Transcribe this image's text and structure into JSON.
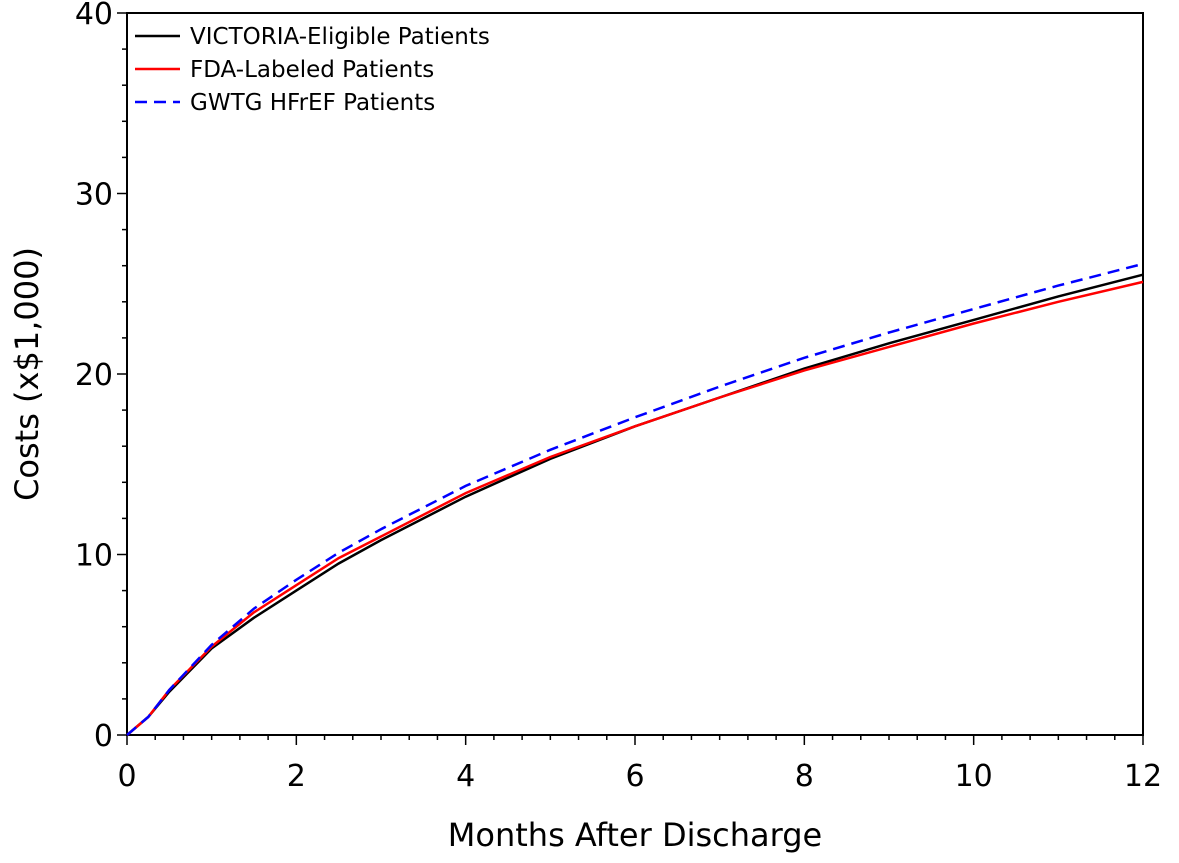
{
  "chart_data": {
    "type": "line",
    "title": "",
    "xlabel": "Months After Discharge",
    "ylabel": "Costs (x$1,000)",
    "xlim": [
      0,
      12
    ],
    "ylim": [
      0,
      40
    ],
    "x_ticks": [
      0,
      2,
      4,
      6,
      8,
      10,
      12
    ],
    "y_ticks": [
      0,
      10,
      20,
      30,
      40
    ],
    "grid": false,
    "legend_position": "top-left",
    "x": [
      0,
      0.25,
      0.5,
      1,
      1.5,
      2,
      2.5,
      3,
      4,
      5,
      6,
      7,
      8,
      9,
      10,
      11,
      12
    ],
    "series": [
      {
        "name": "VICTORIA-Eligible Patients",
        "color": "#000000",
        "dash": "solid",
        "values": [
          0,
          1.0,
          2.4,
          4.8,
          6.5,
          8.0,
          9.5,
          10.8,
          13.2,
          15.3,
          17.1,
          18.7,
          20.3,
          21.7,
          23.0,
          24.3,
          25.5
        ]
      },
      {
        "name": "FDA-Labeled Patients",
        "color": "#ff0000",
        "dash": "solid",
        "values": [
          0,
          1.0,
          2.5,
          4.9,
          6.8,
          8.3,
          9.8,
          11.0,
          13.4,
          15.4,
          17.1,
          18.7,
          20.2,
          21.5,
          22.8,
          24.0,
          25.1
        ]
      },
      {
        "name": "GWTG HFrEF Patients",
        "color": "#0000ff",
        "dash": "dashed",
        "values": [
          0,
          1.0,
          2.5,
          5.0,
          7.0,
          8.6,
          10.1,
          11.4,
          13.8,
          15.8,
          17.6,
          19.3,
          20.9,
          22.3,
          23.6,
          24.9,
          26.1
        ]
      }
    ]
  }
}
